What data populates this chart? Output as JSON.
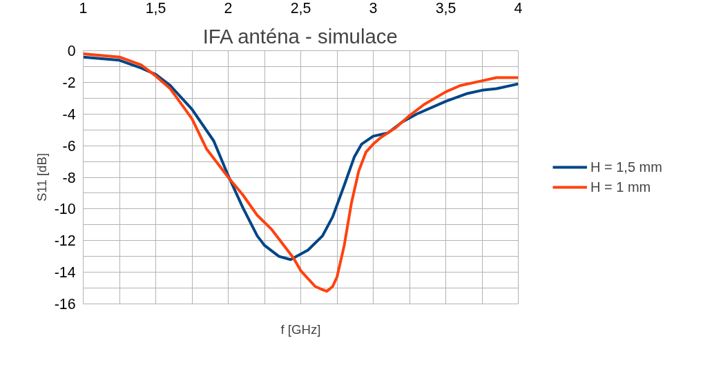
{
  "chart_data": {
    "type": "line",
    "title": "IFA anténa - simulace",
    "xlabel": "f [GHz]",
    "ylabel": "S11 [dB]",
    "xlim": [
      1,
      4
    ],
    "ylim": [
      -16,
      0
    ],
    "xticks": [
      1,
      {
        "value": 1.25,
        "label": null
      },
      {
        "value": 1.5,
        "label": "1,5"
      },
      {
        "value": 1.75,
        "label": null
      },
      2,
      {
        "value": 2.25,
        "label": null
      },
      {
        "value": 2.5,
        "label": "2,5"
      },
      {
        "value": 2.75,
        "label": null
      },
      3,
      {
        "value": 3.25,
        "label": null
      },
      {
        "value": 3.5,
        "label": "3,5"
      },
      {
        "value": 3.75,
        "label": null
      },
      4
    ],
    "yticks": [
      -16,
      {
        "value": -15,
        "label": null
      },
      -14,
      {
        "value": -13,
        "label": null
      },
      -12,
      {
        "value": -11,
        "label": null
      },
      -10,
      {
        "value": -9,
        "label": null
      },
      -8,
      {
        "value": -7,
        "label": null
      },
      -6,
      {
        "value": -5,
        "label": null
      },
      -4,
      {
        "value": -3,
        "label": null
      },
      -2,
      {
        "value": -1,
        "label": null
      },
      0
    ],
    "grid": true,
    "legend": "right",
    "line_style": "solid",
    "marker": "none",
    "series": [
      {
        "name": "H = 1,5 mm",
        "color": "#004586",
        "x": [
          1.0,
          1.25,
          1.4,
          1.5,
          1.6,
          1.75,
          1.9,
          2.0,
          2.1,
          2.2,
          2.25,
          2.35,
          2.43,
          2.55,
          2.65,
          2.72,
          2.8,
          2.87,
          2.92,
          3.0,
          3.1,
          3.2,
          3.3,
          3.5,
          3.65,
          3.75,
          3.85,
          4.0
        ],
        "values": [
          -0.4,
          -0.6,
          -1.1,
          -1.5,
          -2.2,
          -3.7,
          -5.7,
          -7.9,
          -9.9,
          -11.7,
          -12.3,
          -13.0,
          -13.2,
          -12.6,
          -11.7,
          -10.5,
          -8.5,
          -6.7,
          -5.9,
          -5.4,
          -5.2,
          -4.5,
          -4.0,
          -3.2,
          -2.7,
          -2.5,
          -2.4,
          -2.1
        ]
      },
      {
        "name": "H = 1 mm",
        "color": "#ff420e",
        "x": [
          1.0,
          1.25,
          1.4,
          1.5,
          1.6,
          1.75,
          1.85,
          2.0,
          2.1,
          2.2,
          2.3,
          2.4,
          2.45,
          2.5,
          2.55,
          2.6,
          2.65,
          2.68,
          2.72,
          2.75,
          2.8,
          2.85,
          2.9,
          2.95,
          3.0,
          3.05,
          3.15,
          3.25,
          3.35,
          3.5,
          3.6,
          3.75,
          3.85,
          4.0
        ],
        "values": [
          -0.2,
          -0.4,
          -0.9,
          -1.6,
          -2.4,
          -4.3,
          -6.2,
          -8.0,
          -9.1,
          -10.4,
          -11.3,
          -12.5,
          -13.1,
          -13.9,
          -14.4,
          -14.9,
          -15.1,
          -15.2,
          -14.9,
          -14.3,
          -12.3,
          -9.6,
          -7.6,
          -6.4,
          -5.9,
          -5.5,
          -4.9,
          -4.1,
          -3.4,
          -2.6,
          -2.2,
          -1.9,
          -1.7,
          -1.7
        ]
      }
    ]
  }
}
